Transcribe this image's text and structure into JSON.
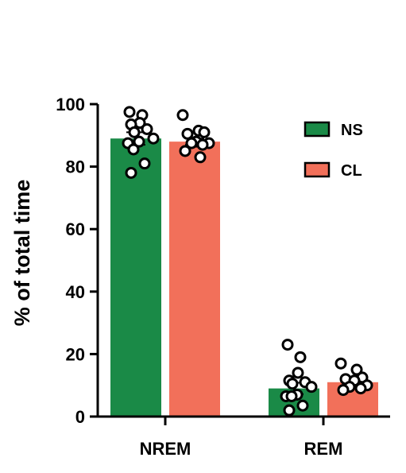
{
  "chart_data": {
    "type": "bar",
    "categories": [
      "NREM",
      "REM"
    ],
    "ylabel": "% of total time",
    "ylim": [
      0,
      100
    ],
    "yticks": [
      0,
      20,
      40,
      60,
      80,
      100
    ],
    "legend": {
      "position": "top-right"
    },
    "series": [
      {
        "name": "NS",
        "color": "#1a8a47",
        "values": [
          89,
          9
        ],
        "sem": [
          2,
          1.8
        ],
        "points": [
          [
            97.5,
            96.5,
            94,
            93.5,
            92,
            91,
            89,
            88,
            87.5,
            85.5,
            81,
            78
          ],
          [
            23,
            19,
            14,
            11.5,
            11,
            10.5,
            9.5,
            7,
            6.5,
            6.5,
            3.5,
            2
          ]
        ]
      },
      {
        "name": "CL",
        "color": "#f2705a",
        "values": [
          88,
          11
        ],
        "sem": [
          1,
          0.8
        ],
        "points": [
          [
            96.5,
            91.5,
            91,
            90.5,
            88,
            87.5,
            87.5,
            87,
            85,
            83
          ],
          [
            17,
            15,
            12.5,
            12,
            11.5,
            10,
            9.5,
            9,
            8.5
          ]
        ]
      }
    ]
  }
}
